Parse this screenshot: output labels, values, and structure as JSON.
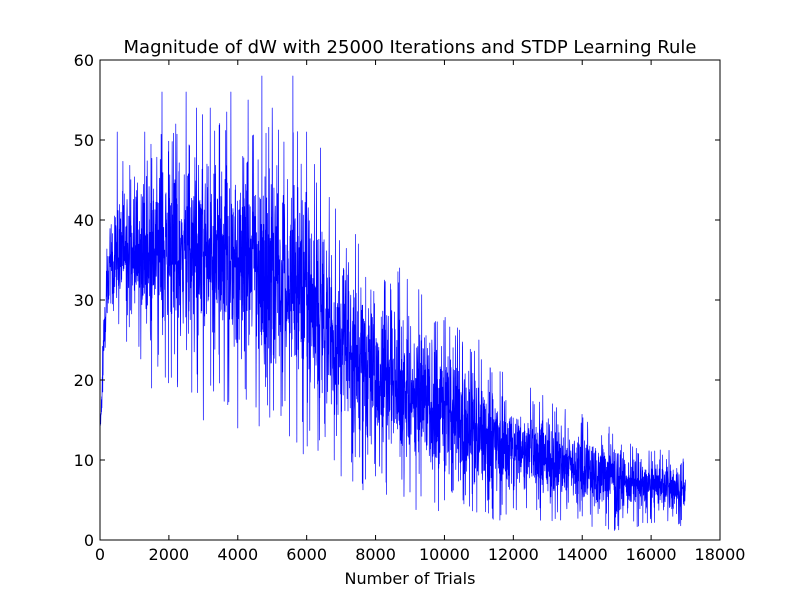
{
  "chart_data": {
    "type": "line",
    "title": "Magnitude of dW with 25000 Iterations and STDP Learning Rule",
    "xlabel": "Number of Trials",
    "ylabel": "",
    "xlim": [
      0,
      18000
    ],
    "ylim": [
      0,
      60
    ],
    "xticks": [
      "0",
      "2000",
      "4000",
      "6000",
      "8000",
      "10000",
      "12000",
      "14000",
      "16000",
      "18000"
    ],
    "yticks": [
      "0",
      "10",
      "20",
      "30",
      "40",
      "50",
      "60"
    ],
    "grid": false,
    "legend": "none",
    "line_color": "#0000ff",
    "n_points": 17000,
    "series": [
      {
        "envelope": {
          "x": [
            0,
            100,
            200,
            300,
            500,
            800,
            1000,
            1500,
            2000,
            2500,
            3000,
            3500,
            4000,
            4500,
            5000,
            5500,
            6000,
            6500,
            7000,
            7500,
            8000,
            8500,
            9000,
            9500,
            10000,
            10500,
            11000,
            11500,
            12000,
            12500,
            13000,
            13500,
            14000,
            14500,
            15000,
            15500,
            16000,
            16500,
            17000
          ],
          "upper": [
            14,
            28,
            37,
            40,
            44,
            45,
            45,
            47,
            48,
            49,
            49,
            49,
            49,
            49,
            48,
            47,
            45,
            40,
            36,
            34,
            33,
            31,
            29,
            27,
            25,
            23,
            21,
            19,
            18,
            17,
            16,
            15,
            14,
            13,
            12,
            11,
            10,
            10,
            9
          ],
          "lower": [
            12,
            20,
            28,
            29,
            29,
            28,
            27,
            25,
            24,
            23,
            22,
            22,
            21,
            20,
            19,
            18,
            16,
            15,
            13,
            11,
            10,
            9,
            8,
            7,
            7,
            6,
            6,
            5,
            5,
            5,
            4,
            4,
            4,
            3,
            3,
            3,
            3,
            3,
            3
          ]
        },
        "peaks": [
          {
            "x": 500,
            "y": 51
          },
          {
            "x": 1300,
            "y": 51
          },
          {
            "x": 1800,
            "y": 56
          },
          {
            "x": 2200,
            "y": 52
          },
          {
            "x": 2500,
            "y": 56
          },
          {
            "x": 2800,
            "y": 54
          },
          {
            "x": 3200,
            "y": 54
          },
          {
            "x": 3800,
            "y": 56
          },
          {
            "x": 4300,
            "y": 55
          },
          {
            "x": 4700,
            "y": 58
          },
          {
            "x": 5000,
            "y": 54
          },
          {
            "x": 5600,
            "y": 58
          },
          {
            "x": 6000,
            "y": 51
          },
          {
            "x": 6400,
            "y": 49
          },
          {
            "x": 7000,
            "y": 40
          },
          {
            "x": 7500,
            "y": 37
          },
          {
            "x": 8700,
            "y": 34
          },
          {
            "x": 10000,
            "y": 30
          },
          {
            "x": 11000,
            "y": 25
          },
          {
            "x": 12000,
            "y": 25
          },
          {
            "x": 12500,
            "y": 19
          },
          {
            "x": 13500,
            "y": 15
          },
          {
            "x": 15400,
            "y": 12
          }
        ],
        "troughs": [
          {
            "x": 1500,
            "y": 19
          },
          {
            "x": 3000,
            "y": 15
          },
          {
            "x": 4000,
            "y": 14
          },
          {
            "x": 5500,
            "y": 13
          },
          {
            "x": 6800,
            "y": 10
          },
          {
            "x": 7000,
            "y": 8
          },
          {
            "x": 8000,
            "y": 8
          },
          {
            "x": 9000,
            "y": 6
          },
          {
            "x": 10000,
            "y": 5
          },
          {
            "x": 12000,
            "y": 4
          },
          {
            "x": 14000,
            "y": 3
          },
          {
            "x": 16800,
            "y": 2
          }
        ]
      }
    ]
  }
}
